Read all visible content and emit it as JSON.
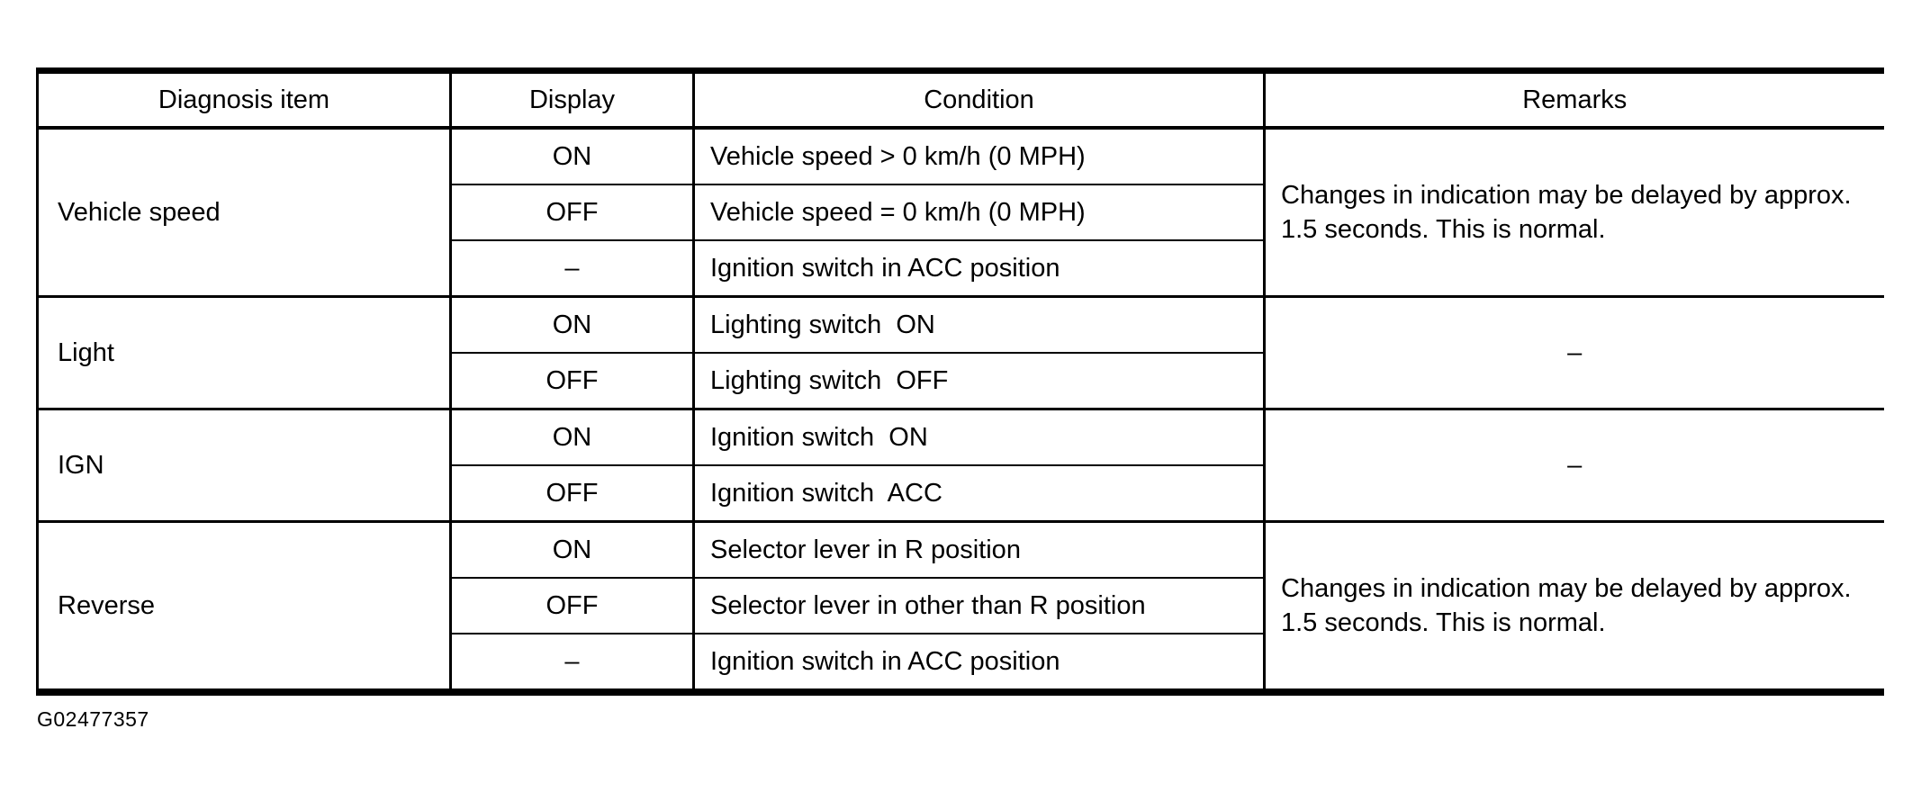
{
  "figure_code": "G02477357",
  "table": {
    "headers": {
      "diagnosis_item": "Diagnosis item",
      "display": "Display",
      "condition": "Condition",
      "remarks": "Remarks"
    },
    "groups": [
      {
        "item": "Vehicle speed",
        "remarks": "Changes in indication may be delayed by approx. 1.5 seconds. This is normal.",
        "rows": [
          {
            "display": "ON",
            "condition": "Vehicle speed > 0 km/h (0 MPH)"
          },
          {
            "display": "OFF",
            "condition": "Vehicle speed = 0 km/h (0 MPH)"
          },
          {
            "display": "–",
            "condition": "Ignition switch in ACC position"
          }
        ]
      },
      {
        "item": "Light",
        "remarks": "–",
        "rows": [
          {
            "display": "ON",
            "condition": "Lighting switch  ON"
          },
          {
            "display": "OFF",
            "condition": "Lighting switch  OFF"
          }
        ]
      },
      {
        "item": "IGN",
        "remarks": "–",
        "rows": [
          {
            "display": "ON",
            "condition": "Ignition switch  ON"
          },
          {
            "display": "OFF",
            "condition": "Ignition switch  ACC"
          }
        ]
      },
      {
        "item": "Reverse",
        "remarks": "Changes in indication may be delayed by approx. 1.5 seconds. This is normal.",
        "rows": [
          {
            "display": "ON",
            "condition": "Selector lever in R position"
          },
          {
            "display": "OFF",
            "condition": "Selector lever in other than R position"
          },
          {
            "display": "–",
            "condition": "Ignition switch in ACC position"
          }
        ]
      }
    ]
  }
}
